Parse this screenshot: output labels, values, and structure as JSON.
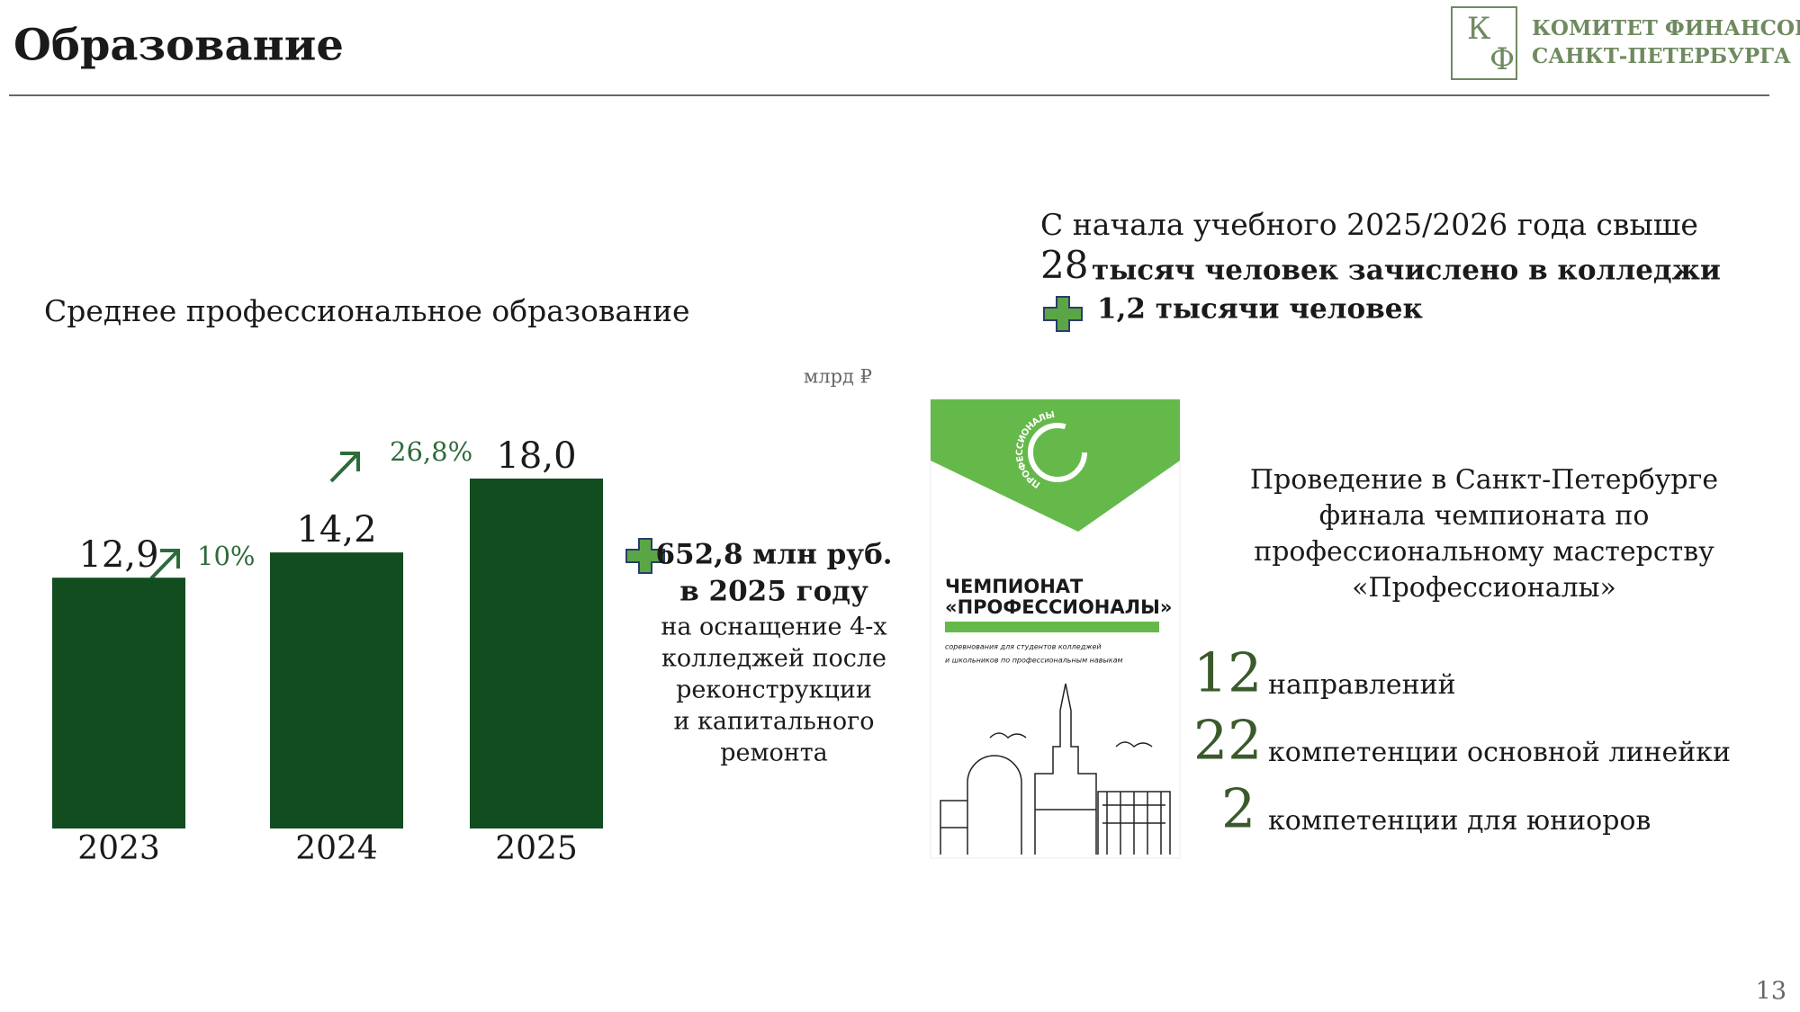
{
  "header": {
    "title": "Образование",
    "logo_letters": [
      "К",
      "Ф"
    ],
    "logo_lines": [
      "КОМИТЕТ ФИНАНСОВ",
      "САНКТ-ПЕТЕРБУРГА"
    ]
  },
  "chart_data": {
    "type": "bar",
    "title": "Среднее профессиональное образование",
    "unit": "млрд ₽",
    "categories": [
      "2023",
      "2024",
      "2025"
    ],
    "values": [
      12.9,
      14.2,
      18
    ],
    "value_labels": [
      "12,9",
      "14,2",
      "18,0"
    ],
    "color": "#124d1f",
    "annotations": [
      "10%",
      "26,8%"
    ]
  },
  "funding": {
    "amount": "652,8 млн руб.",
    "year": "в 2025 году",
    "description": [
      "на оснащение 4-х",
      "колледжей после",
      "реконструкции",
      "и капитального",
      "ремонта"
    ]
  },
  "enrollment": {
    "intro": "С начала учебного 2025/2026 года  свыше",
    "number": 28,
    "text": "тысяч человек зачислено в колледжи",
    "increase": "1,2 тысячи человек"
  },
  "poster": {
    "emblem": "ПРОФЕССИОНАЛЫ",
    "title": [
      "ЧЕМПИОНАТ",
      "«ПРОФЕССИОНАЛЫ»"
    ],
    "subtitle": [
      "соревнования для студентов колледжей",
      "и школьников по профессиональным навыкам"
    ]
  },
  "championship": {
    "description": [
      "Проведение в Санкт-Петербурге",
      "финала чемпионата по",
      "профессиональному мастерству",
      "«Профессионалы»"
    ],
    "stats": [
      {
        "number": 12,
        "label": "направлений"
      },
      {
        "number": 22,
        "label": "компетенции основной линейки"
      },
      {
        "number": 2,
        "label": "компетенции для юниоров"
      }
    ]
  },
  "page_number": 13
}
